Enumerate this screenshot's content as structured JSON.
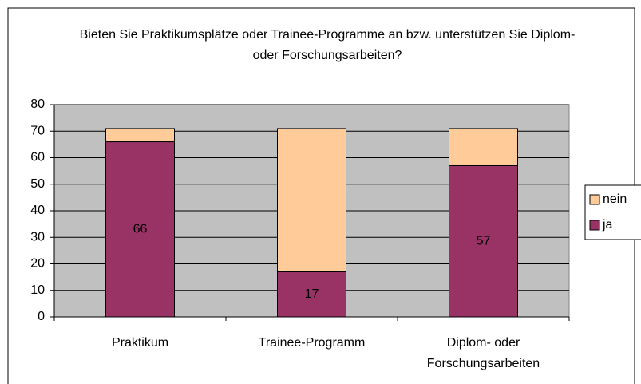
{
  "chart_data": {
    "type": "stacked_bar",
    "title": "Bieten Sie Praktikumsplätze oder Trainee-Programme an bzw. unterstützen Sie Diplom- oder Forschungsarbeiten?",
    "categories": [
      "Praktikum",
      "Trainee-Programm",
      "Diplom- oder Forschungsarbeiten"
    ],
    "series": [
      {
        "name": "ja",
        "color": "#993366",
        "values": [
          66,
          17,
          57
        ],
        "data_labels": true
      },
      {
        "name": "nein",
        "color": "#ffcc99",
        "values": [
          5,
          54,
          14
        ],
        "data_labels": false
      }
    ],
    "ylim": [
      0,
      80
    ],
    "yticks": [
      0,
      10,
      20,
      30,
      40,
      50,
      60,
      70,
      80
    ],
    "grid": true,
    "legend": "right"
  }
}
